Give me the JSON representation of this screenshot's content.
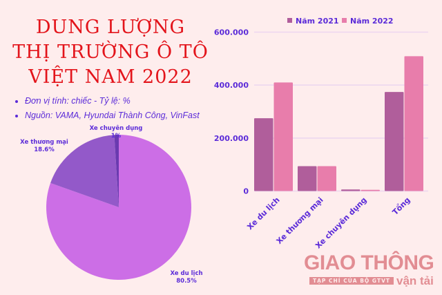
{
  "title_lines": [
    "DUNG LƯỢNG",
    "THỊ TRƯỜNG Ô TÔ",
    "VIỆT NAM 2022"
  ],
  "notes": [
    "Đơn vị tính: chiếc - Tỷ lệ: %",
    "Nguồn: VAMA, Hyundai Thành Công, VinFast"
  ],
  "logo": {
    "main": "GIAO THÔNG",
    "sub": "TẠP CHÍ CỦA BỘ GTVT",
    "tag": "vận tải"
  },
  "chart_data": [
    {
      "type": "pie",
      "slices": [
        {
          "label": "Xe du lịch",
          "value": 80.5,
          "value_label": "80.5%",
          "color": "#cc6ee6"
        },
        {
          "label": "Xe thương mại",
          "value": 18.6,
          "value_label": "18.6%",
          "color": "#9359c9"
        },
        {
          "label": "Xe chuyên dụng",
          "value": 1,
          "value_label": "1%",
          "color": "#6a3ab0"
        }
      ]
    },
    {
      "type": "bar",
      "categories": [
        "Xe du lịch",
        "Xe thương mại",
        "Xe chuyên dụng",
        "Tổng"
      ],
      "series": [
        {
          "name": "Năm 2021",
          "values": [
            275000,
            94000,
            6000,
            374000
          ],
          "color": "#b05e9b"
        },
        {
          "name": "Năm 2022",
          "values": [
            410000,
            94000,
            4500,
            509000
          ],
          "color": "#e87dab"
        }
      ],
      "yticks": [
        0,
        200000,
        400000,
        600000
      ],
      "ytick_labels": [
        "0",
        "200.000",
        "400.000",
        "600.000"
      ],
      "ylim": [
        0,
        600000
      ],
      "grid": true,
      "legend": "top"
    }
  ]
}
